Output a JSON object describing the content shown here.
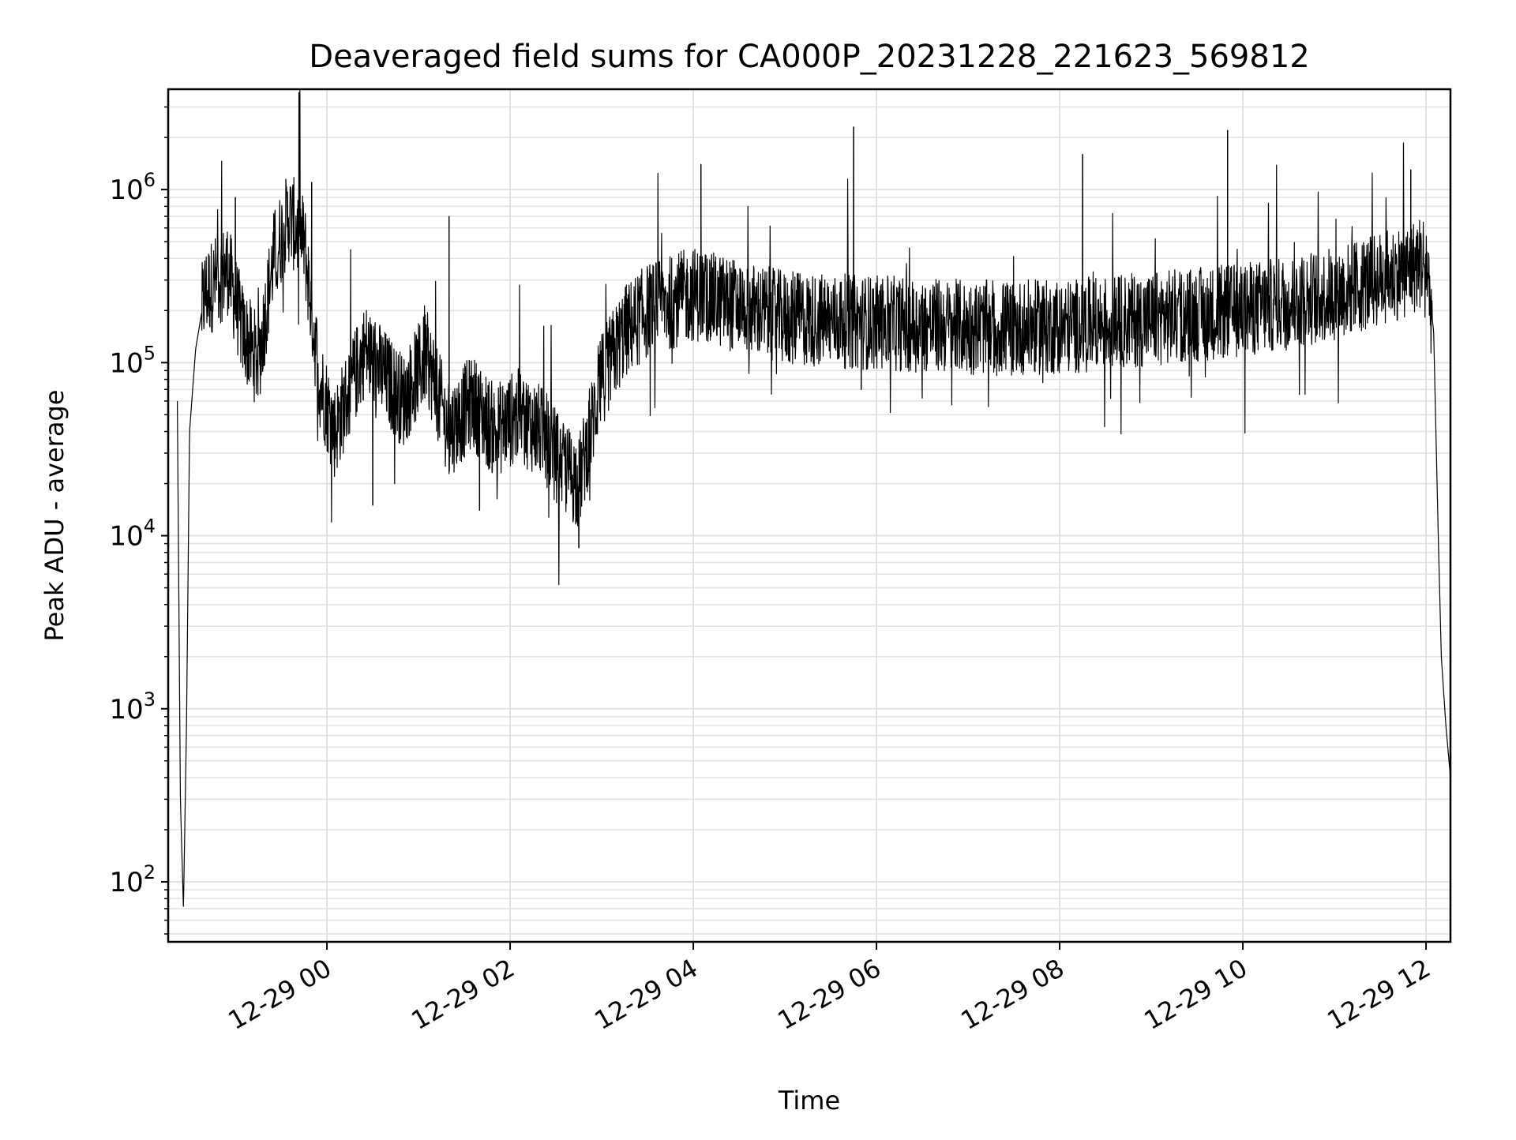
{
  "chart_data": {
    "type": "line",
    "title": "Deaveraged field sums for CA000P_20231228_221623_569812",
    "xlabel": "Time",
    "ylabel": "Peak ADU - average",
    "yscale": "log",
    "ylim": [
      45,
      3800000
    ],
    "xlim": [
      "12-28 22:16",
      "12-29 12:16"
    ],
    "grid": "on (major and minor, light gray)",
    "line_color": "#000000",
    "x_ticks": [
      {
        "value": "12-29 00:00",
        "label": "12-29 00"
      },
      {
        "value": "12-29 02:00",
        "label": "12-29 02"
      },
      {
        "value": "12-29 04:00",
        "label": "12-29 04"
      },
      {
        "value": "12-29 06:00",
        "label": "12-29 06"
      },
      {
        "value": "12-29 08:00",
        "label": "12-29 08"
      },
      {
        "value": "12-29 10:00",
        "label": "12-29 10"
      },
      {
        "value": "12-29 12:00",
        "label": "12-29 12"
      }
    ],
    "y_ticks": [
      {
        "value": 100,
        "base": "10",
        "exp": "2"
      },
      {
        "value": 1000,
        "base": "10",
        "exp": "3"
      },
      {
        "value": 10000,
        "base": "10",
        "exp": "4"
      },
      {
        "value": 100000,
        "base": "10",
        "exp": "5"
      },
      {
        "value": 1000000,
        "base": "10",
        "exp": "6"
      }
    ],
    "series": [
      {
        "x": [
          "12-28 22:22",
          "12-28 22:24",
          "12-28 22:26",
          "12-28 22:28",
          "12-28 22:30",
          "12-28 22:34",
          "12-28 22:40",
          "12-28 22:48",
          "12-28 22:55",
          "12-28 23:05",
          "12-28 23:15",
          "12-28 23:25",
          "12-28 23:35",
          "12-28 23:45",
          "12-28 23:55",
          "12-29 00:05",
          "12-29 00:15",
          "12-29 00:25",
          "12-29 00:35",
          "12-29 00:50",
          "12-29 01:05",
          "12-29 01:20",
          "12-29 01:35",
          "12-29 01:50",
          "12-29 02:05",
          "12-29 02:20",
          "12-29 02:35",
          "12-29 02:45",
          "12-29 03:00",
          "12-29 03:15",
          "12-29 03:30",
          "12-29 04:00",
          "12-29 05:00",
          "12-29 06:00",
          "12-29 07:00",
          "12-29 08:00",
          "12-29 09:00",
          "12-29 10:00",
          "12-29 11:00",
          "12-29 11:50",
          "12-29 12:00",
          "12-29 12:05",
          "12-29 12:08",
          "12-29 12:10",
          "12-29 12:13",
          "12-29 12:16"
        ],
        "y": [
          60000,
          300,
          70,
          800,
          40000,
          120000,
          250000,
          300000,
          350000,
          150000,
          100000,
          400000,
          700000,
          500000,
          80000,
          40000,
          70000,
          120000,
          90000,
          60000,
          110000,
          40000,
          60000,
          40000,
          50000,
          40000,
          25000,
          20000,
          80000,
          150000,
          200000,
          250000,
          180000,
          170000,
          160000,
          160000,
          180000,
          200000,
          250000,
          350000,
          400000,
          150000,
          10000,
          2000,
          800,
          400
        ]
      }
    ],
    "spikes": [
      {
        "x": "12-28 23:00",
        "y": 900000
      },
      {
        "x": "12-28 23:50",
        "y": 1100000
      },
      {
        "x": "12-29 01:20",
        "y": 700000
      },
      {
        "x": "12-29 04:05",
        "y": 1400000
      },
      {
        "x": "12-29 05:45",
        "y": 2300000
      },
      {
        "x": "12-29 08:15",
        "y": 1600000
      },
      {
        "x": "12-29 09:50",
        "y": 2200000
      },
      {
        "x": "12-29 11:50",
        "y": 1300000
      }
    ],
    "dips": [
      {
        "x": "12-29 00:30",
        "y": 15000
      },
      {
        "x": "12-29 01:40",
        "y": 14000
      },
      {
        "x": "12-29 02:45",
        "y": 8500
      },
      {
        "x": "12-29 05:50",
        "y": 70000
      }
    ]
  }
}
